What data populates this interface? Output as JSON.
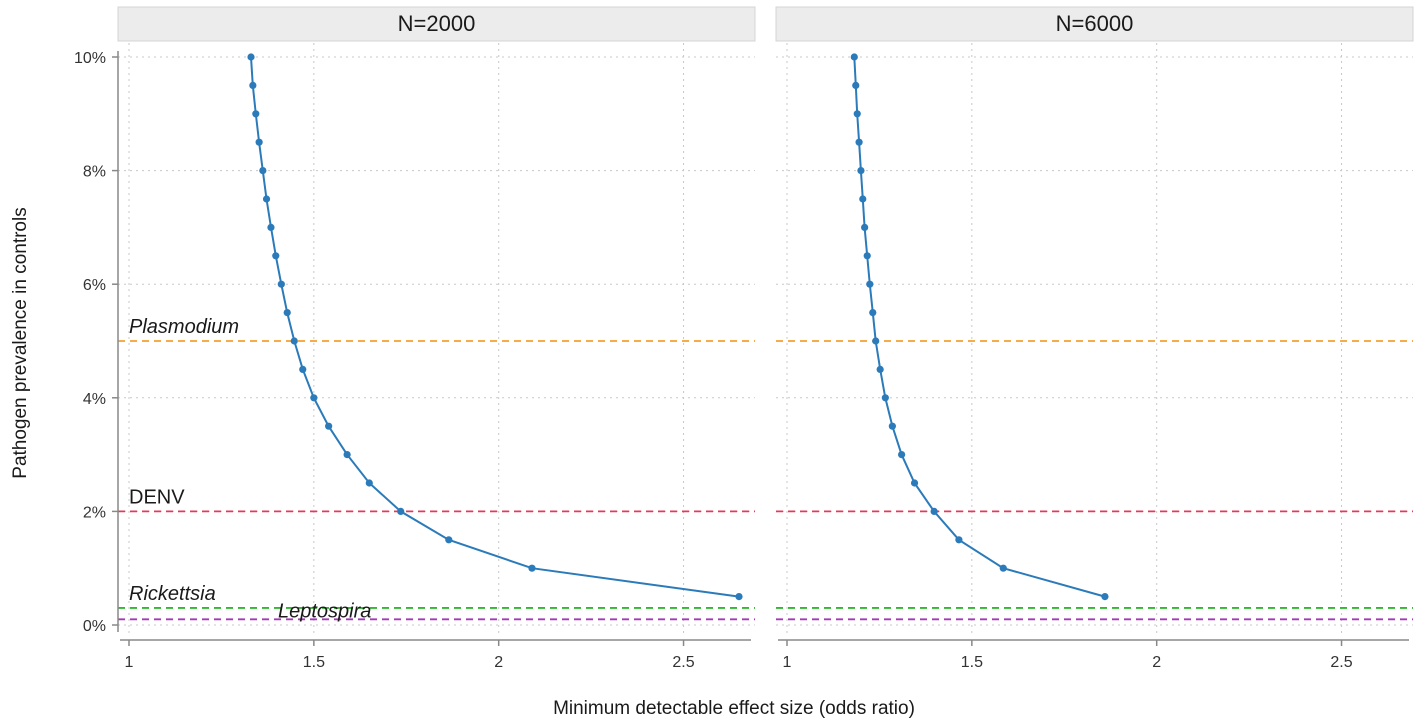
{
  "chart_data": {
    "type": "line",
    "xlabel": "Minimum detectable effect size (odds ratio)",
    "ylabel": "Pathogen prevalence in controls",
    "xlim": [
      0.95,
      2.72
    ],
    "ylim": [
      -0.2,
      10.2
    ],
    "x_ticks": [
      1,
      1.5,
      2,
      2.5
    ],
    "x_tick_labels": [
      "1",
      "1.5",
      "2",
      "2.5"
    ],
    "y_ticks": [
      0,
      2,
      4,
      6,
      8,
      10
    ],
    "y_tick_labels": [
      "0%",
      "2%",
      "4%",
      "6%",
      "8%",
      "10%"
    ],
    "grid": true,
    "line_color": "#2b7bba",
    "panels": [
      {
        "strip_label": "N=2000",
        "points": [
          [
            1.33,
            10.0
          ],
          [
            1.335,
            9.5
          ],
          [
            1.343,
            9.0
          ],
          [
            1.352,
            8.5
          ],
          [
            1.362,
            8.0
          ],
          [
            1.372,
            7.5
          ],
          [
            1.384,
            7.0
          ],
          [
            1.397,
            6.5
          ],
          [
            1.412,
            6.0
          ],
          [
            1.428,
            5.5
          ],
          [
            1.447,
            5.0
          ],
          [
            1.47,
            4.5
          ],
          [
            1.5,
            4.0
          ],
          [
            1.54,
            3.5
          ],
          [
            1.59,
            3.0
          ],
          [
            1.65,
            2.5
          ],
          [
            1.735,
            2.0
          ],
          [
            1.865,
            1.5
          ],
          [
            2.09,
            1.0
          ],
          [
            2.65,
            0.5
          ]
        ]
      },
      {
        "strip_label": "N=6000",
        "points": [
          [
            1.182,
            10.0
          ],
          [
            1.186,
            9.5
          ],
          [
            1.19,
            9.0
          ],
          [
            1.195,
            8.5
          ],
          [
            1.2,
            8.0
          ],
          [
            1.205,
            7.5
          ],
          [
            1.21,
            7.0
          ],
          [
            1.217,
            6.5
          ],
          [
            1.224,
            6.0
          ],
          [
            1.232,
            5.5
          ],
          [
            1.24,
            5.0
          ],
          [
            1.252,
            4.5
          ],
          [
            1.266,
            4.0
          ],
          [
            1.285,
            3.5
          ],
          [
            1.31,
            3.0
          ],
          [
            1.345,
            2.5
          ],
          [
            1.398,
            2.0
          ],
          [
            1.465,
            1.5
          ],
          [
            1.585,
            1.0
          ],
          [
            1.86,
            0.5
          ]
        ]
      }
    ],
    "reference_lines": [
      {
        "label": "Plasmodium",
        "y": 5.0,
        "color": "#f5a032",
        "italic": true
      },
      {
        "label": "DENV",
        "y": 2.0,
        "color": "#e03b5c",
        "italic": false
      },
      {
        "label": "Rickettsia",
        "y": 0.3,
        "color": "#2dbb2d",
        "italic": true
      },
      {
        "label": "Leptospira",
        "y": 0.1,
        "color": "#a43bb6",
        "italic": true
      }
    ]
  }
}
